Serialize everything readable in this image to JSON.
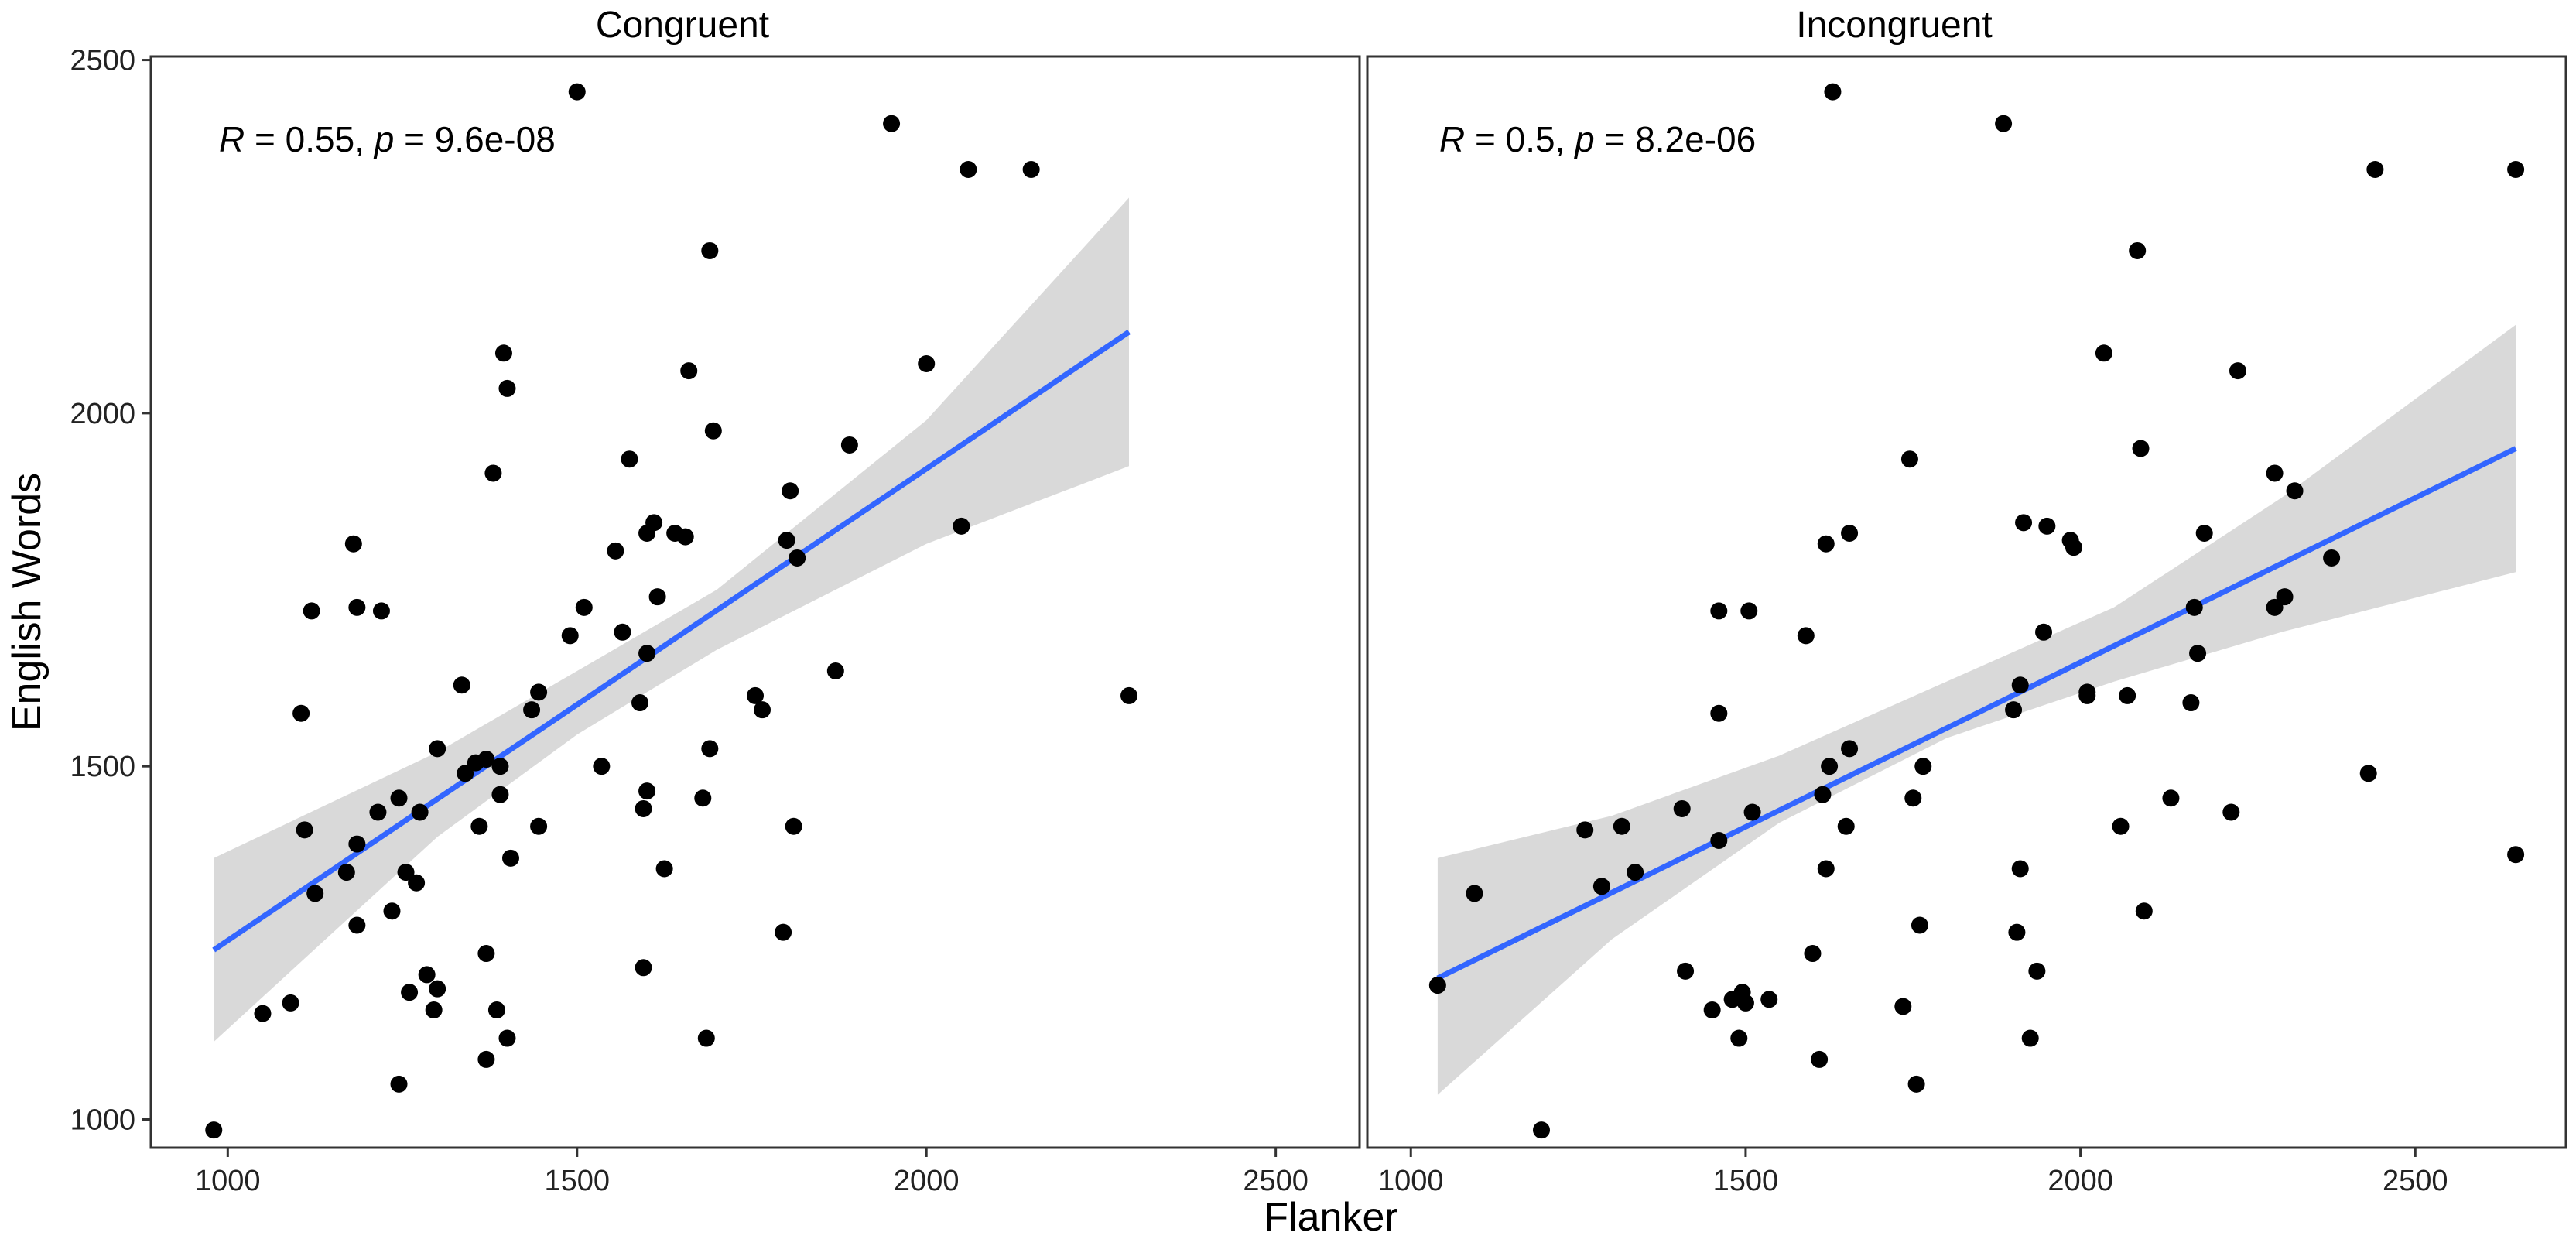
{
  "chart_data": {
    "type": "scatter",
    "xlabel": "Flanker",
    "ylabel": "English Words",
    "xlim": [
      890,
      2620
    ],
    "ylim": [
      960,
      2505
    ],
    "x_ticks": [
      1000,
      1500,
      2000,
      2500
    ],
    "y_ticks": [
      1000,
      1500,
      2000,
      2500
    ],
    "grid": false,
    "colors": {
      "points": "#000000",
      "fit_line": "#3366ff",
      "ci_band": "#cccccc"
    },
    "panels": [
      {
        "title": "Congruent",
        "xlim": [
          890,
          2620
        ],
        "stat_label": {
          "r_symbol": "R",
          "r_text": " = 0.55, ",
          "p_symbol": "p",
          "p_text": " = 9.6e-08"
        },
        "fit": {
          "x0": 980,
          "y0": 1240,
          "x1": 2290,
          "y1": 2115
        },
        "ci_band": {
          "x": [
            980,
            1300,
            1500,
            1700,
            2000,
            2290
          ],
          "lower": [
            1110,
            1400,
            1545,
            1665,
            1815,
            1925
          ],
          "upper": [
            1370,
            1520,
            1635,
            1750,
            1990,
            2305
          ]
        },
        "points": [
          [
            980,
            985
          ],
          [
            1050,
            1150
          ],
          [
            1090,
            1165
          ],
          [
            1105,
            1575
          ],
          [
            1110,
            1410
          ],
          [
            1120,
            1720
          ],
          [
            1125,
            1320
          ],
          [
            1170,
            1350
          ],
          [
            1180,
            1815
          ],
          [
            1185,
            1390
          ],
          [
            1185,
            1275
          ],
          [
            1185,
            1725
          ],
          [
            1215,
            1435
          ],
          [
            1220,
            1720
          ],
          [
            1235,
            1295
          ],
          [
            1245,
            1455
          ],
          [
            1245,
            1050
          ],
          [
            1255,
            1350
          ],
          [
            1260,
            1180
          ],
          [
            1270,
            1335
          ],
          [
            1275,
            1435
          ],
          [
            1285,
            1205
          ],
          [
            1295,
            1155
          ],
          [
            1300,
            1185
          ],
          [
            1300,
            1525
          ],
          [
            1335,
            1615
          ],
          [
            1340,
            1490
          ],
          [
            1355,
            1505
          ],
          [
            1360,
            1415
          ],
          [
            1370,
            1510
          ],
          [
            1370,
            1235
          ],
          [
            1370,
            1085
          ],
          [
            1380,
            1915
          ],
          [
            1385,
            1155
          ],
          [
            1390,
            1500
          ],
          [
            1390,
            1460
          ],
          [
            1395,
            2085
          ],
          [
            1400,
            1115
          ],
          [
            1400,
            2035
          ],
          [
            1405,
            1370
          ],
          [
            1435,
            1580
          ],
          [
            1445,
            1605
          ],
          [
            1445,
            1415
          ],
          [
            1490,
            1685
          ],
          [
            1500,
            2455
          ],
          [
            1510,
            1725
          ],
          [
            1535,
            1500
          ],
          [
            1555,
            1805
          ],
          [
            1565,
            1690
          ],
          [
            1575,
            1935
          ],
          [
            1590,
            1590
          ],
          [
            1595,
            1215
          ],
          [
            1595,
            1440
          ],
          [
            1600,
            1465
          ],
          [
            1600,
            1830
          ],
          [
            1600,
            1660
          ],
          [
            1610,
            1845
          ],
          [
            1615,
            1740
          ],
          [
            1625,
            1355
          ],
          [
            1640,
            1830
          ],
          [
            1655,
            1825
          ],
          [
            1660,
            2060
          ],
          [
            1680,
            1455
          ],
          [
            1685,
            1115
          ],
          [
            1690,
            2230
          ],
          [
            1690,
            1525
          ],
          [
            1695,
            1975
          ],
          [
            1755,
            1600
          ],
          [
            1765,
            1580
          ],
          [
            1795,
            1265
          ],
          [
            1800,
            1820
          ],
          [
            1805,
            1890
          ],
          [
            1810,
            1415
          ],
          [
            1815,
            1795
          ],
          [
            1870,
            1635
          ],
          [
            1890,
            1955
          ],
          [
            2000,
            2070
          ],
          [
            1950,
            2410
          ],
          [
            2050,
            1840
          ],
          [
            2060,
            2345
          ],
          [
            2150,
            2345
          ],
          [
            2290,
            1600
          ]
        ]
      },
      {
        "title": "Incongruent",
        "xlim": [
          890,
          2620
        ],
        "xlim_panel": [
          935,
          2725
        ],
        "stat_label": {
          "r_symbol": "R",
          "r_text": " = 0.5, ",
          "p_symbol": "p",
          "p_text": " = 8.2e-06"
        },
        "fit": {
          "x0": 1040,
          "y0": 1200,
          "x1": 2650,
          "y1": 1950
        },
        "ci_band": {
          "x": [
            1040,
            1300,
            1550,
            1800,
            2050,
            2300,
            2650
          ],
          "lower": [
            1035,
            1255,
            1420,
            1540,
            1620,
            1690,
            1775
          ],
          "upper": [
            1370,
            1430,
            1515,
            1620,
            1725,
            1880,
            2125
          ]
        },
        "points": [
          [
            1040,
            1190
          ],
          [
            1095,
            1320
          ],
          [
            1195,
            985
          ],
          [
            1260,
            1410
          ],
          [
            1285,
            1330
          ],
          [
            1315,
            1415
          ],
          [
            1335,
            1350
          ],
          [
            1405,
            1440
          ],
          [
            1410,
            1210
          ],
          [
            1450,
            1155
          ],
          [
            1460,
            1720
          ],
          [
            1460,
            1575
          ],
          [
            1460,
            1395
          ],
          [
            1480,
            1170
          ],
          [
            1490,
            1115
          ],
          [
            1495,
            1180
          ],
          [
            1500,
            1165
          ],
          [
            1505,
            1720
          ],
          [
            1510,
            1435
          ],
          [
            1535,
            1170
          ],
          [
            1590,
            1685
          ],
          [
            1600,
            1235
          ],
          [
            1610,
            1085
          ],
          [
            1615,
            1460
          ],
          [
            1620,
            1815
          ],
          [
            1620,
            1355
          ],
          [
            1625,
            1500
          ],
          [
            1630,
            2455
          ],
          [
            1650,
            1415
          ],
          [
            1655,
            1830
          ],
          [
            1655,
            1525
          ],
          [
            1735,
            1160
          ],
          [
            1745,
            1935
          ],
          [
            1750,
            1455
          ],
          [
            1755,
            1050
          ],
          [
            1760,
            1275
          ],
          [
            1765,
            1500
          ],
          [
            1885,
            2410
          ],
          [
            1900,
            1580
          ],
          [
            1905,
            1265
          ],
          [
            1910,
            1615
          ],
          [
            1910,
            1355
          ],
          [
            1915,
            1845
          ],
          [
            1925,
            1115
          ],
          [
            1935,
            1210
          ],
          [
            1945,
            1690
          ],
          [
            1950,
            1840
          ],
          [
            1985,
            1820
          ],
          [
            1990,
            1810
          ],
          [
            2010,
            1605
          ],
          [
            2010,
            1600
          ],
          [
            2035,
            2085
          ],
          [
            2060,
            1415
          ],
          [
            2070,
            1600
          ],
          [
            2085,
            2230
          ],
          [
            2090,
            1950
          ],
          [
            2095,
            1295
          ],
          [
            2135,
            1455
          ],
          [
            2165,
            1590
          ],
          [
            2170,
            1725
          ],
          [
            2175,
            1660
          ],
          [
            2185,
            1830
          ],
          [
            2225,
            1435
          ],
          [
            2235,
            2060
          ],
          [
            2290,
            1915
          ],
          [
            2290,
            1725
          ],
          [
            2305,
            1740
          ],
          [
            2320,
            1890
          ],
          [
            2375,
            1795
          ],
          [
            2430,
            1490
          ],
          [
            2440,
            2345
          ],
          [
            2650,
            2345
          ],
          [
            2650,
            1375
          ]
        ]
      }
    ]
  }
}
